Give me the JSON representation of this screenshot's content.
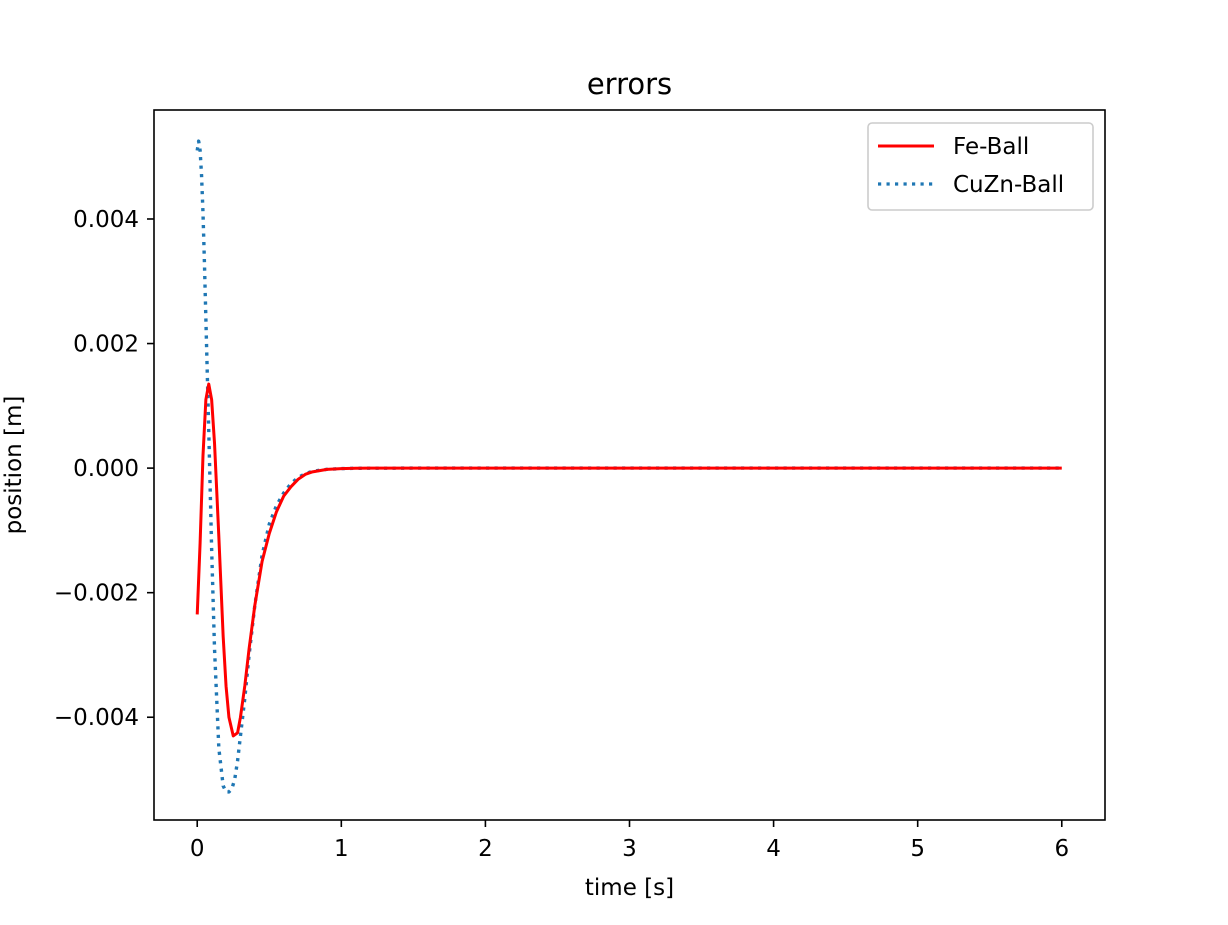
{
  "chart_data": {
    "type": "line",
    "title": "errors",
    "xlabel": "time [s]",
    "ylabel": "position [m]",
    "xlim": [
      -0.3,
      6.3
    ],
    "ylim": [
      -0.00565,
      0.00575
    ],
    "x_ticks": [
      0,
      1,
      2,
      3,
      4,
      5,
      6
    ],
    "x_tick_labels": [
      "0",
      "1",
      "2",
      "3",
      "4",
      "5",
      "6"
    ],
    "y_ticks": [
      -0.004,
      -0.002,
      0.0,
      0.002,
      0.004
    ],
    "y_tick_labels": [
      "−0.004",
      "−0.002",
      "0.000",
      "0.002",
      "0.004"
    ],
    "grid": false,
    "legend_position": "top-right",
    "series": [
      {
        "name": "Fe-Ball",
        "color": "#ff0000",
        "line_style": "solid",
        "x": [
          0,
          0.02,
          0.04,
          0.06,
          0.08,
          0.1,
          0.12,
          0.15,
          0.18,
          0.2,
          0.22,
          0.25,
          0.28,
          0.3,
          0.33,
          0.36,
          0.4,
          0.45,
          0.5,
          0.55,
          0.6,
          0.65,
          0.7,
          0.75,
          0.8,
          0.9,
          1.0,
          1.1,
          1.2,
          1.5,
          2,
          3,
          4,
          5,
          6
        ],
        "y": [
          -0.00235,
          -0.0012,
          0.0002,
          0.0011,
          0.00135,
          0.0011,
          0.0004,
          -0.0011,
          -0.0027,
          -0.0035,
          -0.004,
          -0.0043,
          -0.00425,
          -0.004,
          -0.0035,
          -0.0029,
          -0.0022,
          -0.0015,
          -0.00105,
          -0.0007,
          -0.00045,
          -0.0003,
          -0.00018,
          -0.0001,
          -6e-05,
          -2e-05,
          -8e-06,
          -3e-06,
          -1e-06,
          0,
          0,
          0,
          0,
          0,
          0
        ]
      },
      {
        "name": "CuZn-Ball",
        "color": "#1f77b4",
        "line_style": "dotted",
        "x": [
          0,
          0.01,
          0.02,
          0.03,
          0.04,
          0.05,
          0.06,
          0.08,
          0.1,
          0.12,
          0.15,
          0.18,
          0.2,
          0.22,
          0.24,
          0.26,
          0.28,
          0.3,
          0.33,
          0.36,
          0.4,
          0.45,
          0.5,
          0.55,
          0.6,
          0.65,
          0.7,
          0.75,
          0.8,
          0.9,
          1.0,
          1.1,
          1.2,
          1.5,
          2,
          3,
          4,
          5,
          6
        ],
        "y": [
          0.0051,
          0.00525,
          0.0051,
          0.0047,
          0.0041,
          0.0033,
          0.0024,
          0.0006,
          -0.0013,
          -0.0029,
          -0.0045,
          -0.0051,
          -0.0052,
          -0.0052,
          -0.00515,
          -0.005,
          -0.0047,
          -0.0043,
          -0.0037,
          -0.003,
          -0.0022,
          -0.0014,
          -0.0009,
          -0.0006,
          -0.0004,
          -0.00025,
          -0.00015,
          -9e-05,
          -5e-05,
          -2e-05,
          -8e-06,
          -3e-06,
          -1e-06,
          0,
          0,
          0,
          0,
          0,
          0
        ]
      }
    ]
  }
}
